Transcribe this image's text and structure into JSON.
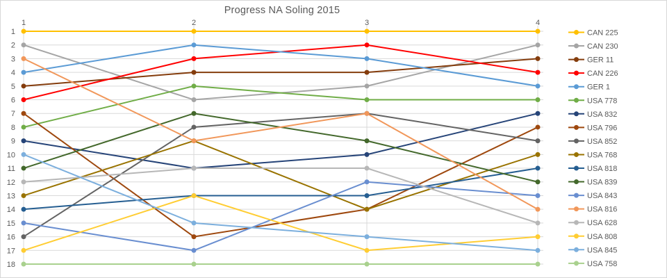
{
  "window": {
    "title": "Progress NA Soling 2015"
  },
  "chart_data": {
    "type": "line",
    "subtype": "bump-rank-progression",
    "title": "Progress NA Soling 2015",
    "x": [
      1,
      2,
      3,
      4
    ],
    "x_tick_labels": [
      "1",
      "2",
      "3",
      "4"
    ],
    "x_axis_position": "top",
    "y_tick_labels": [
      "1",
      "2",
      "3",
      "4",
      "5",
      "6",
      "7",
      "8",
      "9",
      "10",
      "11",
      "12",
      "13",
      "14",
      "15",
      "16",
      "17",
      "18"
    ],
    "ylim": [
      1,
      18
    ],
    "y_reversed": true,
    "grid": true,
    "legend_position": "right",
    "series": [
      {
        "name": "CAN 225",
        "color": "#FFC000",
        "values": [
          1,
          1,
          1,
          1
        ]
      },
      {
        "name": "CAN 230",
        "color": "#A5A5A5",
        "values": [
          2,
          6,
          5,
          2
        ]
      },
      {
        "name": "GER 11",
        "color": "#843C0C",
        "values": [
          5,
          4,
          4,
          3
        ]
      },
      {
        "name": "CAN 226",
        "color": "#FF0000",
        "values": [
          6,
          3,
          2,
          4
        ]
      },
      {
        "name": "GER 1",
        "color": "#5B9BD5",
        "values": [
          4,
          2,
          3,
          5
        ]
      },
      {
        "name": "USA 778",
        "color": "#70AD47",
        "values": [
          8,
          5,
          6,
          6
        ]
      },
      {
        "name": "USA 832",
        "color": "#264478",
        "values": [
          9,
          11,
          10,
          7
        ]
      },
      {
        "name": "USA 796",
        "color": "#9E480E",
        "values": [
          7,
          16,
          14,
          8
        ]
      },
      {
        "name": "USA 852",
        "color": "#636363",
        "values": [
          16,
          8,
          7,
          9
        ]
      },
      {
        "name": "USA 768",
        "color": "#997300",
        "values": [
          13,
          9,
          14,
          10
        ]
      },
      {
        "name": "USA 818",
        "color": "#255E91",
        "values": [
          14,
          13,
          13,
          11
        ]
      },
      {
        "name": "USA 839",
        "color": "#43682B",
        "values": [
          11,
          7,
          9,
          12
        ]
      },
      {
        "name": "USA 843",
        "color": "#698ED0",
        "values": [
          15,
          17,
          12,
          13
        ]
      },
      {
        "name": "USA 816",
        "color": "#F1975A",
        "values": [
          3,
          9,
          7,
          14
        ]
      },
      {
        "name": "USA 628",
        "color": "#B7B7B7",
        "values": [
          12,
          11,
          11,
          15
        ]
      },
      {
        "name": "USA 808",
        "color": "#FFCD33",
        "values": [
          17,
          13,
          17,
          16
        ]
      },
      {
        "name": "USA 845",
        "color": "#7CAFDD",
        "values": [
          10,
          15,
          16,
          17
        ]
      },
      {
        "name": "USA 758",
        "color": "#A9D18E",
        "values": [
          18,
          18,
          18,
          18
        ]
      }
    ]
  },
  "style": {
    "text_color": "#595959",
    "grid_color": "#D9D9D9",
    "background": "#FFFFFF"
  }
}
